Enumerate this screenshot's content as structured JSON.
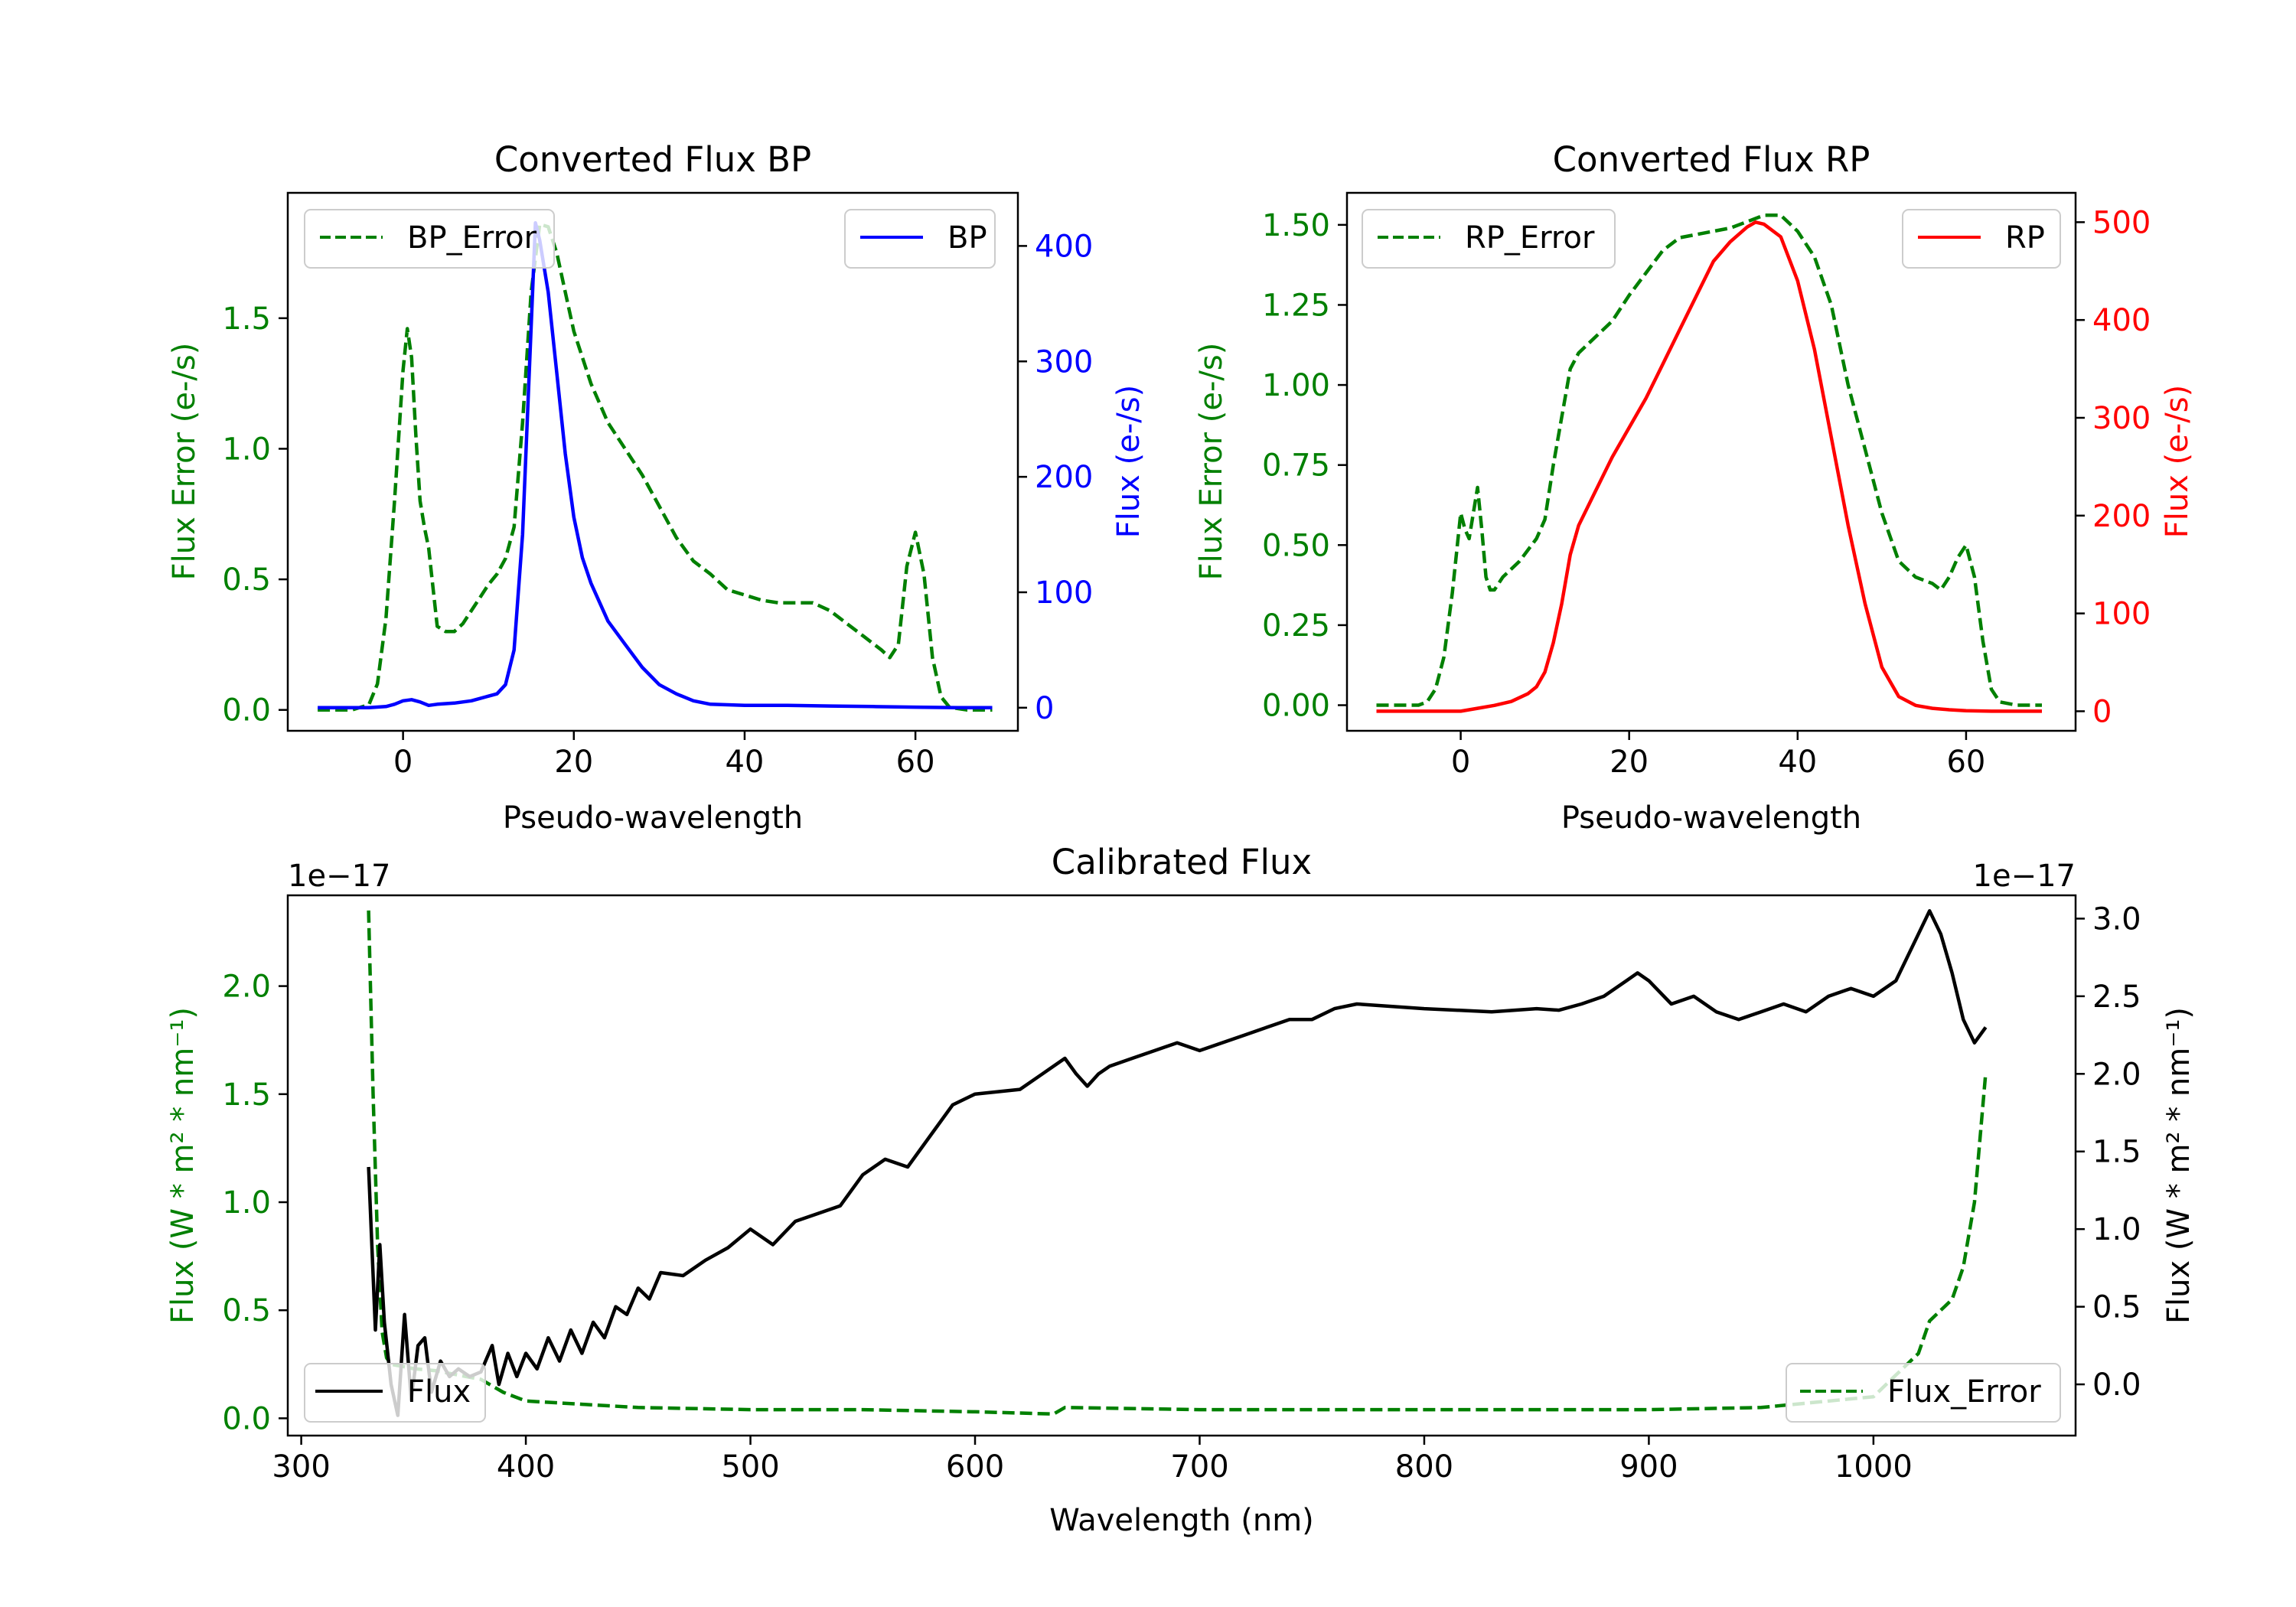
{
  "colors": {
    "green": "#008000",
    "blue": "#0000ff",
    "red": "#ff0000",
    "black": "#000000"
  },
  "chart_data": [
    {
      "id": "bp",
      "type": "line",
      "title": "Converted Flux BP",
      "xlabel": "Pseudo-wavelength",
      "ylabel_left": "Flux Error (e-/s)",
      "ylabel_right": "Flux (e-/s)",
      "xlim": [
        -13.5,
        72
      ],
      "ylim_left": [
        -0.08,
        1.98
      ],
      "ylim_right": [
        -20,
        446
      ],
      "xticks": [
        0,
        20,
        40,
        60
      ],
      "yticks_left": [
        "0.0",
        "0.5",
        "1.0",
        "1.5"
      ],
      "yticks_right": [
        "0",
        "100",
        "200",
        "300",
        "400"
      ],
      "legend_left": "BP_Error",
      "legend_right": "BP",
      "series": [
        {
          "name": "BP_Error",
          "axis": "left",
          "style": "dashed",
          "color": "#008000",
          "x": [
            -10,
            -6,
            -4,
            -3,
            -2,
            -1,
            0,
            0.5,
            1,
            1.5,
            2,
            2.5,
            3,
            4,
            5,
            6,
            7,
            8,
            9,
            10,
            11,
            12,
            13,
            14,
            15,
            16,
            17,
            18,
            19,
            20,
            22,
            24,
            26,
            28,
            30,
            32,
            34,
            36,
            38,
            40,
            42,
            44,
            46,
            48,
            50,
            52,
            54,
            56,
            57,
            58,
            59,
            60,
            61,
            62,
            63,
            64,
            66,
            69
          ],
          "values": [
            0,
            0,
            0.02,
            0.1,
            0.35,
            0.8,
            1.3,
            1.46,
            1.35,
            1.05,
            0.8,
            0.7,
            0.62,
            0.32,
            0.3,
            0.3,
            0.33,
            0.38,
            0.43,
            0.48,
            0.52,
            0.58,
            0.7,
            1.1,
            1.6,
            1.86,
            1.85,
            1.75,
            1.6,
            1.45,
            1.25,
            1.1,
            1.0,
            0.9,
            0.78,
            0.66,
            0.57,
            0.52,
            0.46,
            0.44,
            0.42,
            0.41,
            0.41,
            0.41,
            0.38,
            0.33,
            0.28,
            0.23,
            0.2,
            0.25,
            0.55,
            0.68,
            0.52,
            0.2,
            0.05,
            0.01,
            0,
            0
          ]
        },
        {
          "name": "BP",
          "axis": "right",
          "style": "solid",
          "color": "#0000ff",
          "x": [
            -10,
            -6,
            -4,
            -2,
            -1,
            0,
            1,
            2,
            3,
            4,
            6,
            8,
            10,
            11,
            12,
            13,
            14,
            15,
            15.5,
            16,
            17,
            18,
            19,
            20,
            21,
            22,
            24,
            26,
            28,
            30,
            32,
            34,
            36,
            40,
            45,
            50,
            55,
            60,
            65,
            69
          ],
          "values": [
            0,
            0,
            0,
            1,
            3,
            6,
            7,
            5,
            2,
            3,
            4,
            6,
            10,
            12,
            20,
            50,
            150,
            330,
            420,
            405,
            360,
            290,
            220,
            165,
            130,
            108,
            75,
            55,
            35,
            20,
            12,
            6,
            3,
            2,
            2,
            1.5,
            1,
            0.5,
            0,
            0
          ]
        }
      ]
    },
    {
      "id": "rp",
      "type": "line",
      "title": "Converted Flux RP",
      "xlabel": "Pseudo-wavelength",
      "ylabel_left": "Flux Error (e-/s)",
      "ylabel_right": "Flux (e-/s)",
      "xlim": [
        -13.5,
        73
      ],
      "ylim_left": [
        -0.08,
        1.6
      ],
      "ylim_right": [
        -20,
        530
      ],
      "xticks": [
        0,
        20,
        40,
        60
      ],
      "yticks_left": [
        "0.00",
        "0.25",
        "0.50",
        "0.75",
        "1.00",
        "1.25",
        "1.50"
      ],
      "yticks_right": [
        "0",
        "100",
        "200",
        "300",
        "400",
        "500"
      ],
      "legend_left": "RP_Error",
      "legend_right": "RP",
      "series": [
        {
          "name": "RP_Error",
          "axis": "left",
          "style": "dashed",
          "color": "#008000",
          "x": [
            -10,
            -5,
            -4,
            -3,
            -2,
            -1,
            0,
            0.5,
            1,
            1.5,
            2,
            2.5,
            3,
            3.5,
            4,
            5,
            7,
            9,
            10,
            11,
            12,
            13,
            14,
            16,
            18,
            20,
            22,
            24,
            26,
            28,
            30,
            32,
            34,
            36,
            38,
            40,
            42,
            44,
            46,
            48,
            50,
            52,
            54,
            56,
            57,
            58,
            59,
            60,
            61,
            62,
            63,
            64,
            66,
            69
          ],
          "values": [
            0,
            0,
            0.01,
            0.05,
            0.15,
            0.35,
            0.6,
            0.55,
            0.52,
            0.6,
            0.68,
            0.55,
            0.4,
            0.36,
            0.36,
            0.4,
            0.45,
            0.52,
            0.58,
            0.75,
            0.9,
            1.05,
            1.1,
            1.15,
            1.2,
            1.28,
            1.35,
            1.42,
            1.46,
            1.47,
            1.48,
            1.49,
            1.51,
            1.53,
            1.53,
            1.48,
            1.4,
            1.25,
            1.0,
            0.8,
            0.6,
            0.45,
            0.4,
            0.38,
            0.36,
            0.4,
            0.46,
            0.5,
            0.4,
            0.2,
            0.05,
            0.01,
            0,
            0
          ]
        },
        {
          "name": "RP",
          "axis": "right",
          "style": "solid",
          "color": "#ff0000",
          "x": [
            -10,
            -5,
            0,
            2,
            4,
            6,
            8,
            9,
            10,
            11,
            12,
            13,
            14,
            16,
            18,
            20,
            22,
            24,
            26,
            28,
            30,
            32,
            34,
            35,
            36,
            38,
            40,
            42,
            44,
            46,
            48,
            50,
            52,
            54,
            56,
            58,
            60,
            63,
            66,
            69
          ],
          "values": [
            0,
            0,
            0,
            3,
            6,
            10,
            18,
            25,
            40,
            70,
            110,
            160,
            190,
            225,
            260,
            290,
            320,
            355,
            390,
            425,
            460,
            480,
            495,
            500,
            498,
            485,
            440,
            370,
            280,
            190,
            110,
            45,
            15,
            6,
            3,
            1.5,
            0.5,
            0,
            0,
            0
          ]
        }
      ]
    },
    {
      "id": "calibrated",
      "type": "line",
      "title": "Calibrated Flux",
      "xlabel": "Wavelength (nm)",
      "ylabel_left": "Flux (W * m² * nm⁻¹)",
      "ylabel_right": "Flux (W * m² * nm⁻¹)",
      "offset_left": "1e−17",
      "offset_right": "1e−17",
      "xlim": [
        294,
        1090
      ],
      "ylim_left": [
        -0.08,
        2.42
      ],
      "ylim_right": [
        -0.33,
        3.15
      ],
      "xticks": [
        300,
        400,
        500,
        600,
        700,
        800,
        900,
        1000
      ],
      "yticks_left": [
        "0.0",
        "0.5",
        "1.0",
        "1.5",
        "2.0"
      ],
      "yticks_right": [
        "0.0",
        "0.5",
        "1.0",
        "1.5",
        "2.0",
        "2.5",
        "3.0"
      ],
      "legend_left": "Flux",
      "legend_right": "Flux_Error",
      "series": [
        {
          "name": "Flux_Error",
          "axis": "left",
          "style": "dashed",
          "color": "#008000",
          "x": [
            330,
            332,
            334,
            336,
            338,
            340,
            345,
            350,
            360,
            370,
            380,
            390,
            400,
            450,
            500,
            550,
            600,
            635,
            640,
            700,
            800,
            900,
            950,
            1000,
            1010,
            1020,
            1025,
            1030,
            1035,
            1040,
            1045,
            1050
          ],
          "values": [
            2.35,
            1.5,
            0.8,
            0.4,
            0.28,
            0.25,
            0.24,
            0.23,
            0.22,
            0.2,
            0.18,
            0.12,
            0.08,
            0.05,
            0.04,
            0.04,
            0.03,
            0.02,
            0.05,
            0.04,
            0.04,
            0.04,
            0.05,
            0.1,
            0.2,
            0.3,
            0.45,
            0.5,
            0.55,
            0.7,
            1.0,
            1.6
          ]
        },
        {
          "name": "Flux",
          "axis": "right",
          "style": "solid",
          "color": "#000000",
          "x": [
            330,
            333,
            335,
            337,
            340,
            343,
            346,
            349,
            352,
            355,
            358,
            362,
            366,
            370,
            375,
            380,
            385,
            388,
            392,
            396,
            400,
            405,
            410,
            415,
            420,
            425,
            430,
            435,
            440,
            445,
            450,
            455,
            460,
            470,
            480,
            490,
            500,
            510,
            520,
            530,
            540,
            550,
            560,
            570,
            580,
            590,
            600,
            620,
            630,
            640,
            645,
            650,
            655,
            660,
            670,
            680,
            690,
            700,
            710,
            720,
            730,
            740,
            750,
            760,
            770,
            800,
            830,
            850,
            860,
            870,
            880,
            890,
            895,
            900,
            910,
            920,
            930,
            940,
            950,
            960,
            970,
            980,
            990,
            1000,
            1010,
            1020,
            1025,
            1030,
            1035,
            1040,
            1045,
            1050
          ],
          "values": [
            1.4,
            0.35,
            0.9,
            0.4,
            0.0,
            -0.2,
            0.45,
            -0.1,
            0.25,
            0.3,
            -0.05,
            0.15,
            0.05,
            0.1,
            0.05,
            0.08,
            0.25,
            0.0,
            0.2,
            0.05,
            0.2,
            0.1,
            0.3,
            0.15,
            0.35,
            0.2,
            0.4,
            0.3,
            0.5,
            0.45,
            0.62,
            0.55,
            0.72,
            0.7,
            0.8,
            0.88,
            1.0,
            0.9,
            1.05,
            1.1,
            1.15,
            1.35,
            1.45,
            1.4,
            1.6,
            1.8,
            1.87,
            1.9,
            2.0,
            2.1,
            2.0,
            1.92,
            2.0,
            2.05,
            2.1,
            2.15,
            2.2,
            2.15,
            2.2,
            2.25,
            2.3,
            2.35,
            2.35,
            2.42,
            2.45,
            2.42,
            2.4,
            2.42,
            2.41,
            2.45,
            2.5,
            2.6,
            2.65,
            2.6,
            2.45,
            2.5,
            2.4,
            2.35,
            2.4,
            2.45,
            2.4,
            2.5,
            2.55,
            2.5,
            2.6,
            2.9,
            3.05,
            2.9,
            2.65,
            2.35,
            2.2,
            2.3
          ]
        }
      ]
    }
  ]
}
